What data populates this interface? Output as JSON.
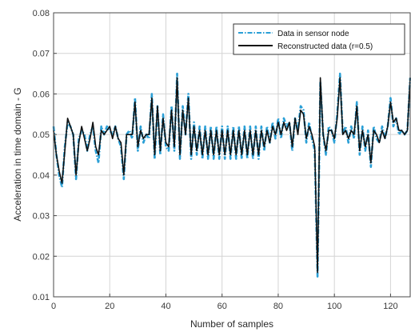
{
  "chart_data": {
    "type": "line",
    "title": "",
    "xlabel": "Number of samples",
    "ylabel": "Acceleration in time domain - G",
    "xlim": [
      0,
      127
    ],
    "ylim": [
      0.01,
      0.08
    ],
    "xticks": [
      0,
      20,
      40,
      60,
      80,
      100,
      120
    ],
    "yticks": [
      0.01,
      0.02,
      0.03,
      0.04,
      0.05,
      0.06,
      0.07,
      0.08
    ],
    "xtick_labels": [
      "0",
      "20",
      "40",
      "60",
      "80",
      "100",
      "120"
    ],
    "ytick_labels": [
      "0.01",
      "0.02",
      "0.03",
      "0.04",
      "0.05",
      "0.06",
      "0.07",
      "0.08"
    ],
    "grid": true,
    "legend_position": "top-right",
    "colors": {
      "sensor": "#2a9fd6",
      "reconstructed": "#111111",
      "grid": "#d4d4d4",
      "axes": "#4a4a4a"
    },
    "x": [
      0,
      1,
      2,
      3,
      4,
      5,
      6,
      7,
      8,
      9,
      10,
      11,
      12,
      13,
      14,
      15,
      16,
      17,
      18,
      19,
      20,
      21,
      22,
      23,
      24,
      25,
      26,
      27,
      28,
      29,
      30,
      31,
      32,
      33,
      34,
      35,
      36,
      37,
      38,
      39,
      40,
      41,
      42,
      43,
      44,
      45,
      46,
      47,
      48,
      49,
      50,
      51,
      52,
      53,
      54,
      55,
      56,
      57,
      58,
      59,
      60,
      61,
      62,
      63,
      64,
      65,
      66,
      67,
      68,
      69,
      70,
      71,
      72,
      73,
      74,
      75,
      76,
      77,
      78,
      79,
      80,
      81,
      82,
      83,
      84,
      85,
      86,
      87,
      88,
      89,
      90,
      91,
      92,
      93,
      94,
      95,
      96,
      97,
      98,
      99,
      100,
      101,
      102,
      103,
      104,
      105,
      106,
      107,
      108,
      109,
      110,
      111,
      112,
      113,
      114,
      115,
      116,
      117,
      118,
      119,
      120,
      121,
      122,
      123,
      124,
      125,
      126,
      127
    ],
    "series": [
      {
        "name": "Data in sensor node",
        "style": "dash-dot",
        "color": "#2a9fd6",
        "values": [
          0.052,
          0.045,
          0.04,
          0.037,
          0.047,
          0.053,
          0.052,
          0.05,
          0.039,
          0.049,
          0.051,
          0.05,
          0.046,
          0.05,
          0.052,
          0.046,
          0.043,
          0.052,
          0.05,
          0.052,
          0.051,
          0.05,
          0.052,
          0.049,
          0.047,
          0.039,
          0.05,
          0.051,
          0.049,
          0.059,
          0.046,
          0.052,
          0.048,
          0.05,
          0.049,
          0.06,
          0.044,
          0.057,
          0.045,
          0.055,
          0.047,
          0.046,
          0.057,
          0.046,
          0.065,
          0.044,
          0.057,
          0.05,
          0.06,
          0.044,
          0.053,
          0.045,
          0.052,
          0.044,
          0.052,
          0.044,
          0.052,
          0.044,
          0.052,
          0.044,
          0.052,
          0.044,
          0.052,
          0.044,
          0.052,
          0.044,
          0.052,
          0.044,
          0.052,
          0.044,
          0.052,
          0.044,
          0.052,
          0.044,
          0.052,
          0.046,
          0.052,
          0.048,
          0.053,
          0.049,
          0.054,
          0.049,
          0.054,
          0.052,
          0.053,
          0.046,
          0.054,
          0.051,
          0.057,
          0.056,
          0.048,
          0.053,
          0.049,
          0.046,
          0.015,
          0.063,
          0.05,
          0.045,
          0.052,
          0.051,
          0.048,
          0.055,
          0.065,
          0.05,
          0.052,
          0.048,
          0.052,
          0.049,
          0.058,
          0.045,
          0.052,
          0.046,
          0.051,
          0.042,
          0.052,
          0.049,
          0.048,
          0.052,
          0.049,
          0.052,
          0.059,
          0.052,
          0.054,
          0.05,
          0.051,
          0.05,
          0.051,
          0.064
        ]
      },
      {
        "name": "Reconstructed data (r=0.5)",
        "style": "solid",
        "color": "#111111",
        "values": [
          0.051,
          0.045,
          0.041,
          0.038,
          0.046,
          0.054,
          0.052,
          0.05,
          0.04,
          0.048,
          0.052,
          0.049,
          0.046,
          0.049,
          0.053,
          0.047,
          0.045,
          0.051,
          0.05,
          0.051,
          0.052,
          0.049,
          0.052,
          0.049,
          0.048,
          0.04,
          0.05,
          0.05,
          0.05,
          0.058,
          0.047,
          0.051,
          0.049,
          0.05,
          0.05,
          0.059,
          0.045,
          0.057,
          0.046,
          0.054,
          0.048,
          0.047,
          0.056,
          0.047,
          0.064,
          0.045,
          0.056,
          0.05,
          0.059,
          0.045,
          0.052,
          0.046,
          0.051,
          0.045,
          0.051,
          0.045,
          0.051,
          0.045,
          0.051,
          0.045,
          0.051,
          0.045,
          0.051,
          0.045,
          0.051,
          0.045,
          0.051,
          0.045,
          0.051,
          0.045,
          0.051,
          0.045,
          0.051,
          0.045,
          0.051,
          0.047,
          0.051,
          0.048,
          0.052,
          0.05,
          0.053,
          0.05,
          0.053,
          0.051,
          0.053,
          0.047,
          0.054,
          0.05,
          0.056,
          0.055,
          0.049,
          0.052,
          0.05,
          0.047,
          0.016,
          0.064,
          0.05,
          0.046,
          0.051,
          0.051,
          0.049,
          0.054,
          0.064,
          0.05,
          0.051,
          0.049,
          0.051,
          0.05,
          0.057,
          0.046,
          0.051,
          0.047,
          0.05,
          0.043,
          0.051,
          0.05,
          0.048,
          0.051,
          0.049,
          0.052,
          0.058,
          0.053,
          0.054,
          0.051,
          0.051,
          0.05,
          0.051,
          0.064
        ]
      }
    ]
  }
}
